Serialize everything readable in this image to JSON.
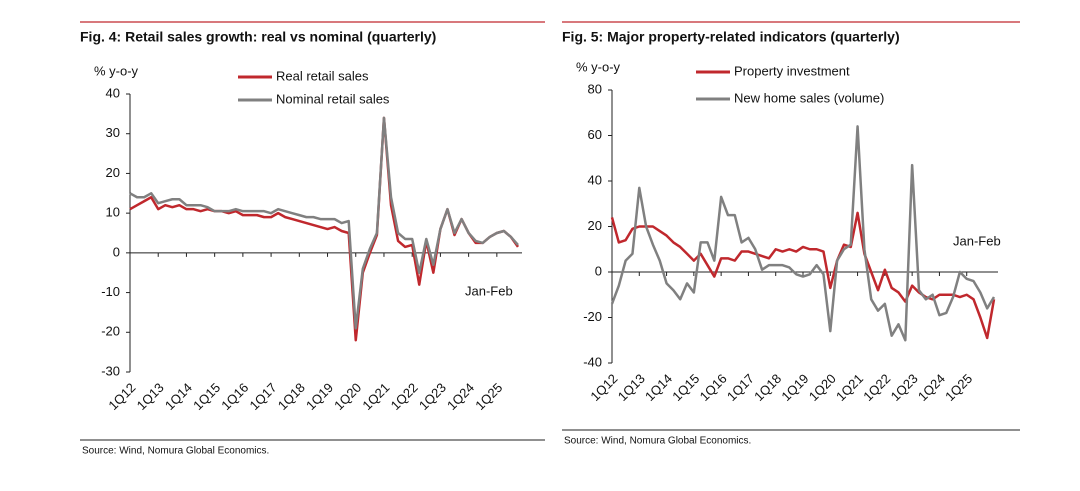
{
  "chart_data": [
    {
      "type": "line",
      "title": "Fig. 4: Retail sales growth: real vs nominal (quarterly)",
      "ylabel": "% y-o-y",
      "annotation": "Jan-Feb",
      "source": "Source: Wind, Nomura Global Economics.",
      "legend": "top",
      "categories": [
        "1Q12",
        null,
        null,
        null,
        "1Q13",
        null,
        null,
        null,
        "1Q14",
        null,
        null,
        null,
        "1Q15",
        null,
        null,
        null,
        "1Q16",
        null,
        null,
        null,
        "1Q17",
        null,
        null,
        null,
        "1Q18",
        null,
        null,
        null,
        "1Q19",
        null,
        null,
        null,
        "1Q20",
        null,
        null,
        null,
        "1Q21",
        null,
        null,
        null,
        "1Q22",
        null,
        null,
        null,
        "1Q23",
        null,
        null,
        null,
        "1Q24",
        null,
        null,
        null,
        "1Q25",
        null,
        null,
        null
      ],
      "ylim": [
        -30,
        40
      ],
      "yticks": [
        -30,
        -20,
        -10,
        0,
        10,
        20,
        30,
        40
      ],
      "series": [
        {
          "name": "Real retail sales",
          "color": "#c0282d",
          "values": [
            11,
            12,
            13,
            14,
            11,
            12,
            11.5,
            12,
            11,
            11,
            10.5,
            11,
            10.5,
            10.5,
            10,
            10.5,
            9.5,
            9.5,
            9.5,
            9,
            9,
            10,
            9,
            8.5,
            8,
            7.5,
            7,
            6.5,
            6,
            6.5,
            5.5,
            5,
            -22,
            -5,
            0,
            4.5,
            34,
            12,
            3,
            1.5,
            2,
            -8,
            3,
            -5,
            6,
            11,
            4.5,
            8.5,
            5,
            2.5,
            2.5,
            4,
            5,
            5.5,
            4,
            1.5
          ]
        },
        {
          "name": "Nominal retail sales",
          "color": "#808080",
          "values": [
            15,
            14,
            14,
            15,
            12.5,
            13,
            13.5,
            13.5,
            12,
            12,
            12,
            11.5,
            10.5,
            10.5,
            10.5,
            11,
            10.5,
            10.5,
            10.5,
            10.5,
            10,
            11,
            10.5,
            10,
            9.5,
            9,
            9,
            8.5,
            8.5,
            8.5,
            7.5,
            8,
            -19,
            -4,
            1,
            5,
            34,
            14,
            5,
            3.5,
            3.5,
            -5,
            3.5,
            -3,
            6,
            11,
            5,
            8.5,
            5,
            3,
            2.5,
            4,
            5,
            5.5,
            4,
            2
          ]
        }
      ]
    },
    {
      "type": "line",
      "title": "Fig. 5: Major property-related indicators (quarterly)",
      "ylabel": "% y-o-y",
      "annotation": "Jan-Feb",
      "source": "Source: Wind, Nomura Global Economics.",
      "legend": "top",
      "categories": [
        "1Q12",
        null,
        null,
        null,
        "1Q13",
        null,
        null,
        null,
        "1Q14",
        null,
        null,
        null,
        "1Q15",
        null,
        null,
        null,
        "1Q16",
        null,
        null,
        null,
        "1Q17",
        null,
        null,
        null,
        "1Q18",
        null,
        null,
        null,
        "1Q19",
        null,
        null,
        null,
        "1Q20",
        null,
        null,
        null,
        "1Q21",
        null,
        null,
        null,
        "1Q22",
        null,
        null,
        null,
        "1Q23",
        null,
        null,
        null,
        "1Q24",
        null,
        null,
        null,
        "1Q25",
        null,
        null,
        null,
        null
      ],
      "ylim": [
        -40,
        80
      ],
      "yticks": [
        -40,
        -20,
        0,
        20,
        40,
        60,
        80
      ],
      "series": [
        {
          "name": "Property investment",
          "color": "#c0282d",
          "values": [
            24,
            13,
            14,
            19,
            20,
            20,
            20,
            18,
            16,
            13,
            11,
            8,
            5,
            8,
            3,
            -2,
            6,
            6,
            5,
            9,
            9,
            8,
            7,
            6,
            10,
            9,
            10,
            9,
            11,
            10,
            10,
            9,
            -7,
            5,
            12,
            11,
            26,
            8,
            0,
            -8,
            1,
            -7,
            -9,
            -13,
            -6,
            -9,
            -11,
            -12,
            -10,
            -10,
            -10,
            -11,
            -10,
            -12,
            -20,
            -29,
            -12
          ]
        },
        {
          "name": "New home sales (volume)",
          "color": "#808080",
          "values": [
            -14,
            -6,
            5,
            8,
            37,
            20,
            12,
            5,
            -5,
            -8,
            -12,
            -5,
            -9,
            13,
            13,
            5,
            33,
            25,
            25,
            13,
            15,
            10,
            1,
            3,
            3,
            3,
            2,
            -1,
            -2,
            -1,
            3,
            -1,
            -26,
            5,
            10,
            12,
            64,
            10,
            -12,
            -17,
            -14,
            -28,
            -23,
            -30,
            47,
            -8,
            -12,
            -10,
            -19,
            -18,
            -11,
            0,
            -3,
            -4,
            -9,
            -16,
            -11
          ]
        }
      ]
    }
  ]
}
